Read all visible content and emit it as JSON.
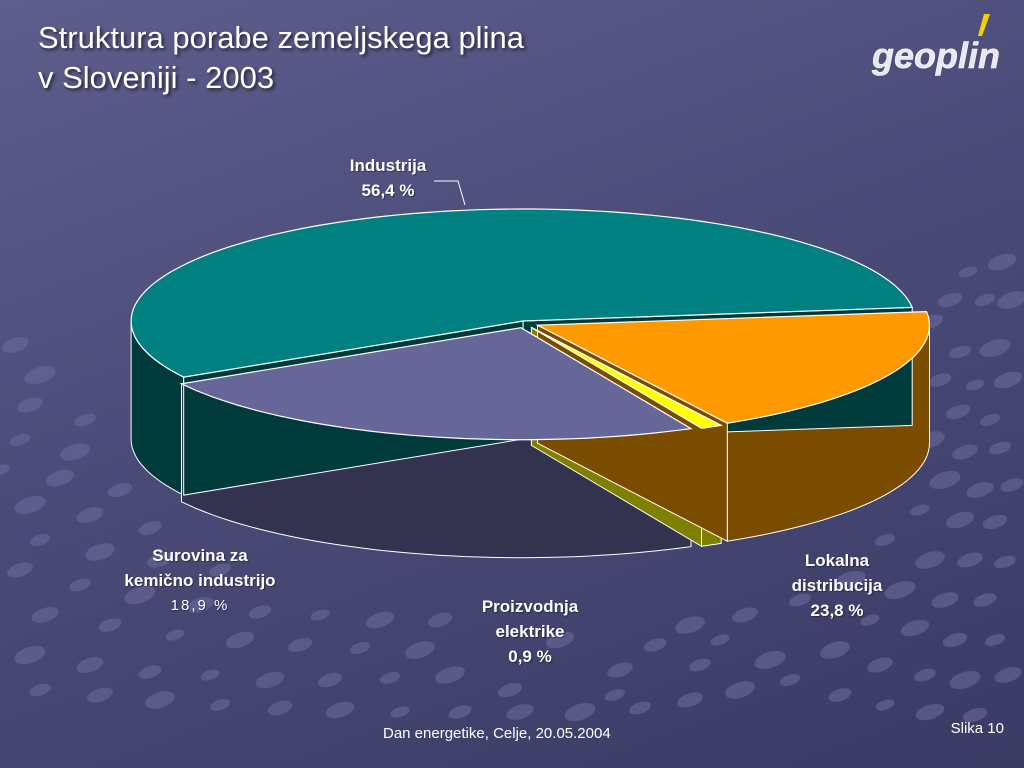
{
  "slide": {
    "title_line1": "Struktura porabe zemeljskega plina",
    "title_line2": "v Sloveniji - 2003",
    "logo_text": "geoplin",
    "footer": "Dan energetike, Celje, 20.05.2004",
    "slide_number": "Slika 10"
  },
  "colors": {
    "background": "#4a4b78",
    "industrija": "#008080",
    "lokalna": "#666699",
    "proizvodnja": "#ffff00",
    "surovina": "#ff9900"
  },
  "chart_data": {
    "type": "pie",
    "style": "3d-exploded",
    "unit": "%",
    "slices": [
      {
        "name": "Industrija",
        "value": 56.4,
        "label_lines": [
          "Industrija",
          "56,4 %"
        ]
      },
      {
        "name": "Lokalna distribucija",
        "value": 23.8,
        "label_lines": [
          "Lokalna",
          "distribucija",
          "23,8 %"
        ]
      },
      {
        "name": "Proizvodnja elektrike",
        "value": 0.9,
        "label_lines": [
          "Proizvodnja",
          "elektrike",
          "0,9 %"
        ]
      },
      {
        "name": "Surovina za kemično industrijo",
        "value": 18.9,
        "label_lines": [
          "Surovina za",
          "kemično industrijo",
          "18,9 %"
        ]
      }
    ]
  }
}
